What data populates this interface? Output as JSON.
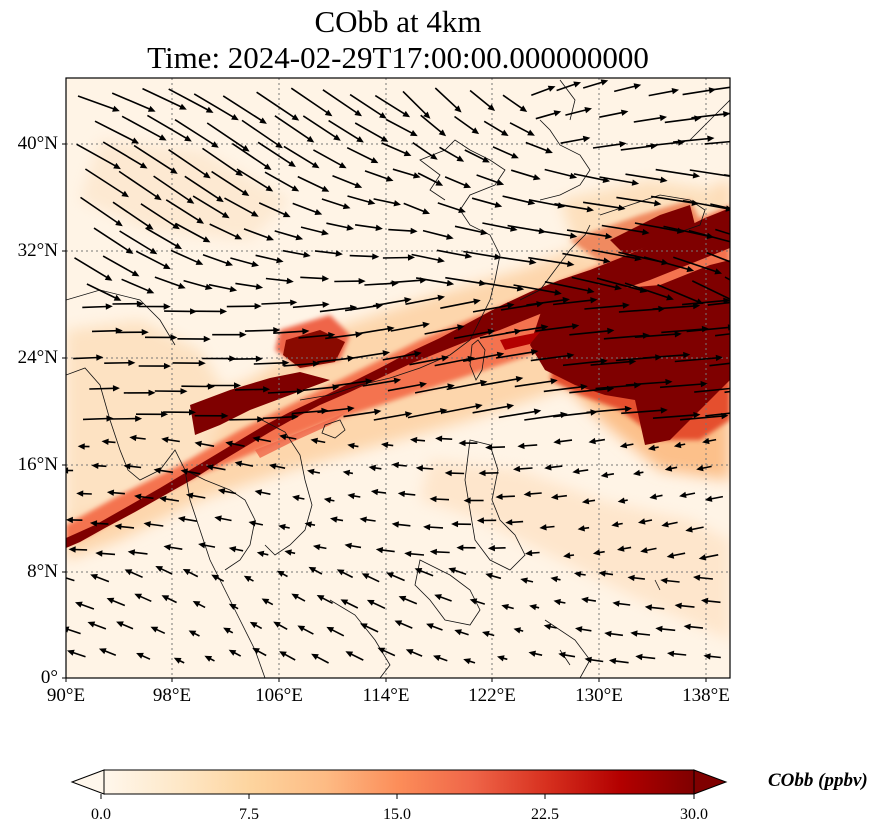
{
  "title": {
    "line1": "CObb at 4km",
    "line2": "Time: 2024-02-29T17:00:00.000000000"
  },
  "map": {
    "extent": {
      "lon_min": 90,
      "lon_max": 139.5,
      "lat_min": 0,
      "lat_max": 45
    },
    "lat_ticks": [
      {
        "value": 0,
        "label": "0°"
      },
      {
        "value": 8,
        "label": "8°N"
      },
      {
        "value": 16,
        "label": "16°N"
      },
      {
        "value": 24,
        "label": "24°N"
      },
      {
        "value": 32,
        "label": "32°N"
      },
      {
        "value": 40,
        "label": "40°N"
      }
    ],
    "lon_ticks": [
      {
        "value": 90,
        "label": "90°E"
      },
      {
        "value": 98,
        "label": "98°E"
      },
      {
        "value": 106,
        "label": "106°E"
      },
      {
        "value": 114,
        "label": "114°E"
      },
      {
        "value": 122,
        "label": "122°E"
      },
      {
        "value": 130,
        "label": "130°E"
      },
      {
        "value": 138,
        "label": "138°E"
      }
    ],
    "gridlines": true,
    "field": "CObb"
  },
  "colorbar": {
    "label": "CObb (ppbv)",
    "min": 0,
    "max": 30,
    "ticks": [
      "0.0",
      "7.5",
      "15.0",
      "22.5",
      "30.0"
    ],
    "extend": "both",
    "colormap": "OrRd",
    "colors": [
      "#fff7ec",
      "#fee8c8",
      "#fdd49e",
      "#fdbb84",
      "#fc8d59",
      "#ef6548",
      "#d7301f",
      "#b30000",
      "#7f0000"
    ]
  }
}
